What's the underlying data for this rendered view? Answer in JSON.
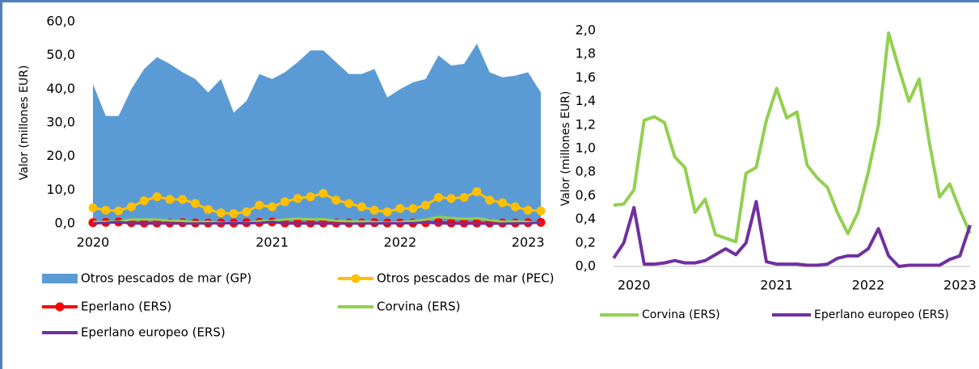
{
  "chart_data": [
    {
      "type": "combo",
      "ylabel": "Valor (millones EUR)",
      "categories": [
        "2020",
        null,
        null,
        null,
        null,
        null,
        null,
        null,
        null,
        null,
        null,
        null,
        null,
        null,
        "2021",
        null,
        null,
        null,
        null,
        null,
        null,
        null,
        null,
        null,
        "2022",
        null,
        null,
        null,
        null,
        null,
        null,
        null,
        null,
        null,
        "2023",
        null
      ],
      "ylim": [
        0,
        60
      ],
      "yticks": [
        {
          "value": 0,
          "label": "0,0"
        },
        {
          "value": 10,
          "label": "10,0"
        },
        {
          "value": 20,
          "label": "20,0"
        },
        {
          "value": 30,
          "label": "30,0"
        },
        {
          "value": 40,
          "label": "40,0"
        },
        {
          "value": 50,
          "label": "50,0"
        },
        {
          "value": 60,
          "label": "60,0"
        }
      ],
      "series": [
        {
          "name": "Otros pescados de mar (GP)",
          "style": "area",
          "color": "#5b9bd5",
          "values": [
            41.5,
            32,
            32,
            40,
            46,
            49.5,
            47.5,
            45,
            43,
            39,
            43,
            33,
            36.5,
            44.5,
            43,
            45,
            48,
            51.5,
            51.5,
            48,
            44.5,
            44.5,
            46,
            37.5,
            40,
            42,
            43,
            50,
            47,
            47.5,
            53.5,
            45,
            43.5,
            44,
            45,
            39
          ]
        },
        {
          "name": "Otros pescados de mar (PEC)",
          "style": "line",
          "marker": true,
          "color": "#ffc000",
          "values": [
            4.7,
            4,
            3.8,
            5,
            6.8,
            8,
            7.2,
            7.2,
            6,
            4.2,
            3.2,
            3,
            3.5,
            5.5,
            5,
            6.5,
            7.5,
            8,
            9,
            7,
            6,
            5,
            4,
            3.5,
            4.5,
            4.5,
            5.5,
            7.8,
            7.5,
            7.8,
            9.5,
            7,
            6.2,
            5,
            4,
            3.8
          ]
        },
        {
          "name": "Eperlano (ERS)",
          "style": "line",
          "marker": true,
          "color": "#ff0000",
          "values": [
            0.3,
            0.4,
            0.5,
            0.3,
            0.2,
            0.2,
            0.2,
            0.3,
            0.2,
            0.2,
            0.2,
            0.2,
            0.3,
            0.4,
            0.5,
            0.2,
            0.2,
            0.2,
            0.2,
            0.2,
            0.2,
            0.2,
            0.3,
            0.2,
            0.2,
            0.2,
            0.3,
            0.4,
            0.2,
            0.2,
            0.2,
            0.2,
            0.2,
            0.2,
            0.3,
            0.4
          ]
        },
        {
          "name": "Corvina (ERS)",
          "style": "line",
          "color": "#92d050",
          "values": [
            0.52,
            0.53,
            0.65,
            1.24,
            1.27,
            1.22,
            0.93,
            0.84,
            0.46,
            0.57,
            0.27,
            0.24,
            0.21,
            0.79,
            0.84,
            1.24,
            1.51,
            1.26,
            1.31,
            0.86,
            0.75,
            0.67,
            0.45,
            0.28,
            0.46,
            0.8,
            1.2,
            1.98,
            1.68,
            1.4,
            1.59,
            1.05,
            0.59,
            0.7,
            0.48,
            0.28
          ]
        },
        {
          "name": "Eperlano europeo (ERS)",
          "style": "line",
          "color": "#7030a0",
          "values": [
            0.07,
            0.2,
            0.5,
            0.02,
            0.02,
            0.03,
            0.05,
            0.03,
            0.03,
            0.05,
            0.1,
            0.15,
            0.1,
            0.2,
            0.55,
            0.04,
            0.02,
            0.02,
            0.02,
            0.01,
            0.01,
            0.02,
            0.07,
            0.09,
            0.09,
            0.15,
            0.32,
            0.09,
            0.0,
            0.01,
            0.01,
            0.01,
            0.01,
            0.06,
            0.09,
            0.35
          ]
        }
      ]
    },
    {
      "type": "line",
      "ylabel": "Valor (millones EUR)",
      "categories": [
        null,
        null,
        "2020",
        null,
        null,
        null,
        null,
        null,
        null,
        null,
        null,
        null,
        null,
        null,
        null,
        null,
        "2021",
        null,
        null,
        null,
        null,
        null,
        null,
        null,
        null,
        "2022",
        null,
        null,
        null,
        null,
        null,
        null,
        null,
        null,
        "2023",
        null
      ],
      "ylim": [
        0,
        2
      ],
      "yticks": [
        {
          "value": 0,
          "label": "0,0"
        },
        {
          "value": 0.2,
          "label": "0,2"
        },
        {
          "value": 0.4,
          "label": "0,4"
        },
        {
          "value": 0.6,
          "label": "0,6"
        },
        {
          "value": 0.8,
          "label": "0,8"
        },
        {
          "value": 1,
          "label": "1,0"
        },
        {
          "value": 1.2,
          "label": "1,2"
        },
        {
          "value": 1.4,
          "label": "1,4"
        },
        {
          "value": 1.6,
          "label": "1,6"
        },
        {
          "value": 1.8,
          "label": "1,8"
        },
        {
          "value": 2,
          "label": "2,0"
        }
      ],
      "series": [
        {
          "name": "Corvina (ERS)",
          "color": "#92d050",
          "values": [
            0.52,
            0.53,
            0.65,
            1.24,
            1.27,
            1.22,
            0.93,
            0.84,
            0.46,
            0.57,
            0.27,
            0.24,
            0.21,
            0.79,
            0.84,
            1.24,
            1.51,
            1.26,
            1.31,
            0.86,
            0.75,
            0.67,
            0.45,
            0.28,
            0.46,
            0.8,
            1.2,
            1.98,
            1.68,
            1.4,
            1.59,
            1.05,
            0.59,
            0.7,
            0.48,
            0.28
          ]
        },
        {
          "name": "Eperlano europeo (ERS)",
          "color": "#7030a0",
          "values": [
            0.07,
            0.2,
            0.5,
            0.02,
            0.02,
            0.03,
            0.05,
            0.03,
            0.03,
            0.05,
            0.1,
            0.15,
            0.1,
            0.2,
            0.55,
            0.04,
            0.02,
            0.02,
            0.02,
            0.01,
            0.01,
            0.02,
            0.07,
            0.09,
            0.09,
            0.15,
            0.32,
            0.09,
            0.0,
            0.01,
            0.01,
            0.01,
            0.01,
            0.06,
            0.09,
            0.35
          ]
        }
      ]
    }
  ]
}
